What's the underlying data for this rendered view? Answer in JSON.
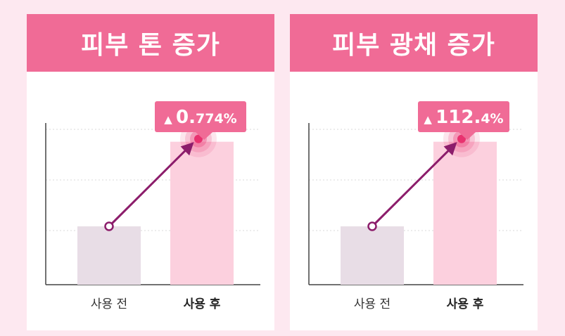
{
  "colors": {
    "background": "#fde8f0",
    "header": "#f06b96",
    "bar_before": "#e8dde6",
    "bar_after": "#fcd0de",
    "arrow": "#8c1d6b",
    "callout": "#f06b96",
    "target": "#e8326f"
  },
  "icons": {
    "callout_marker": "up-triangle-icon"
  },
  "chart_data": [
    {
      "type": "bar",
      "title": "피부 톤 증가",
      "categories": [
        "사용 전",
        "사용 후"
      ],
      "values": [
        1,
        2.45
      ],
      "highlight_category": "사용 후",
      "callout": {
        "symbol": "▲",
        "main": "0.",
        "small": "774%"
      },
      "grid": true,
      "xlabel": "",
      "ylabel": ""
    },
    {
      "type": "bar",
      "title": "피부 광채 증가",
      "categories": [
        "사용 전",
        "사용 후"
      ],
      "values": [
        1,
        2.45
      ],
      "highlight_category": "사용 후",
      "callout": {
        "symbol": "▲",
        "main": "112.",
        "small": "4%"
      },
      "grid": true,
      "xlabel": "",
      "ylabel": ""
    }
  ]
}
